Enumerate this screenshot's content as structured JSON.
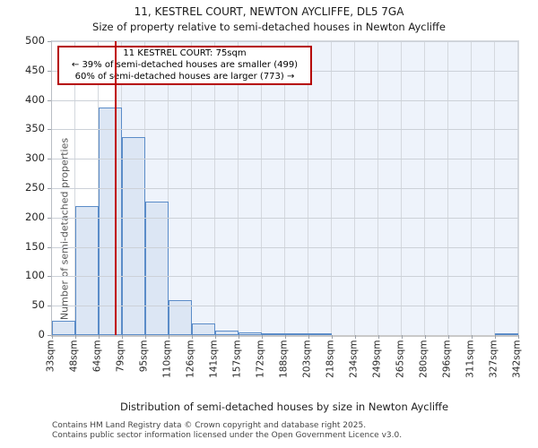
{
  "title": "11, KESTREL COURT, NEWTON AYCLIFFE, DL5 7GA",
  "subtitle": "Size of property relative to semi-detached houses in Newton Aycliffe",
  "annotation": {
    "line1": "11 KESTREL COURT: 75sqm",
    "line2": "← 39% of semi-detached houses are smaller (499)",
    "line3": "60% of semi-detached houses are larger (773) →"
  },
  "chart_data": {
    "type": "bar",
    "title": "11, KESTREL COURT, NEWTON AYCLIFFE, DL5 7GA",
    "subtitle": "Size of property relative to semi-detached houses in Newton Aycliffe",
    "xlabel": "Distribution of semi-detached houses by size in Newton Aycliffe",
    "ylabel": "Number of semi-detached properties",
    "bin_edges_sqm": [
      33,
      48,
      64,
      79,
      95,
      110,
      126,
      141,
      157,
      172,
      188,
      203,
      218,
      234,
      249,
      265,
      280,
      296,
      311,
      327,
      342
    ],
    "bin_labels": [
      "33sqm",
      "48sqm",
      "64sqm",
      "79sqm",
      "95sqm",
      "110sqm",
      "126sqm",
      "141sqm",
      "157sqm",
      "172sqm",
      "188sqm",
      "203sqm",
      "218sqm",
      "234sqm",
      "249sqm",
      "265sqm",
      "280sqm",
      "296sqm",
      "311sqm",
      "327sqm",
      "342sqm"
    ],
    "values": [
      25,
      220,
      387,
      337,
      227,
      60,
      20,
      7,
      5,
      2,
      2,
      2,
      0,
      0,
      0,
      0,
      0,
      0,
      0,
      2
    ],
    "marker": {
      "label": "11 KESTREL COURT",
      "value_sqm": 75,
      "smaller_pct": 39,
      "smaller_count": 499,
      "larger_pct": 60,
      "larger_count": 773
    },
    "ylim": [
      0,
      500
    ],
    "yticks": [
      0,
      50,
      100,
      150,
      200,
      250,
      300,
      350,
      400,
      450,
      500
    ],
    "grid": true,
    "legend": false
  },
  "colors": {
    "bar_fill": "#dce6f4",
    "bar_edge": "#5b8cc8",
    "marker_line": "#c00000",
    "annotation_border": "#b50000",
    "shade_region": "#eef3fb",
    "gridline": "#d0d4da"
  },
  "footer": {
    "line1": "Contains HM Land Registry data © Crown copyright and database right 2025.",
    "line2": "Contains public sector information licensed under the Open Government Licence v3.0."
  }
}
